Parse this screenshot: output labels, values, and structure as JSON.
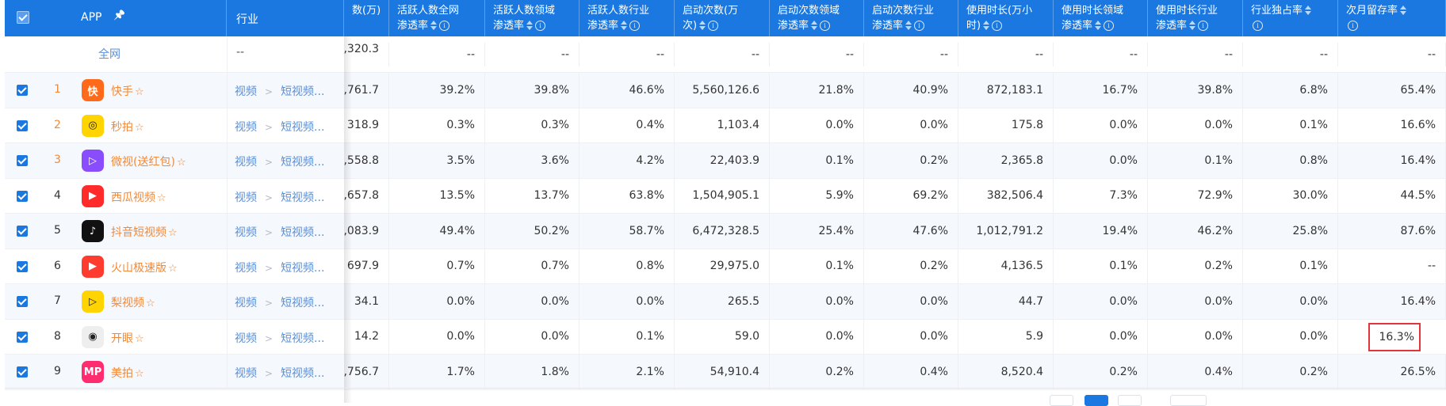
{
  "header": {
    "app_label": "APP",
    "industry_label": "行业",
    "columns": [
      {
        "line1": "数(万)",
        "line2": ""
      },
      {
        "line1": "活跃人数全网",
        "line2": "渗透率"
      },
      {
        "line1": "活跃人数领域",
        "line2": "渗透率"
      },
      {
        "line1": "活跃人数行业",
        "line2": "渗透率"
      },
      {
        "line1": "启动次数(万",
        "line2": "次)"
      },
      {
        "line1": "启动次数领域",
        "line2": "渗透率"
      },
      {
        "line1": "启动次数行业",
        "line2": "渗透率"
      },
      {
        "line1": "使用时长(万小",
        "line2": "时)"
      },
      {
        "line1": "使用时长领域",
        "line2": "渗透率"
      },
      {
        "line1": "使用时长行业",
        "line2": "渗透率"
      },
      {
        "line1": "行业独占率",
        "line2": ""
      },
      {
        "line1": "次月留存率",
        "line2": ""
      }
    ]
  },
  "allnet": {
    "label": "全网",
    "industry": "--",
    "values": [
      ",320.3",
      "--",
      "--",
      "--",
      "--",
      "--",
      "--",
      "--",
      "--",
      "--",
      "--",
      "--"
    ]
  },
  "rows": [
    {
      "rank": "1",
      "name": "快手",
      "icon": "kuaishou-icon",
      "icon_color": "#ff6a1a",
      "glyph": "快",
      "cat1": "视频",
      "cat2": "短视频...",
      "values": [
        ",761.7",
        "39.2%",
        "39.8%",
        "46.6%",
        "5,560,126.6",
        "21.8%",
        "40.9%",
        "872,183.1",
        "16.7%",
        "39.8%",
        "6.8%",
        "65.4%"
      ]
    },
    {
      "rank": "2",
      "name": "秒拍",
      "icon": "miaopai-icon",
      "icon_color": "#ffd400",
      "glyph": "◎",
      "cat1": "视频",
      "cat2": "短视频...",
      "values": [
        "318.9",
        "0.3%",
        "0.3%",
        "0.4%",
        "1,103.4",
        "0.0%",
        "0.0%",
        "175.8",
        "0.0%",
        "0.0%",
        "0.1%",
        "16.6%"
      ]
    },
    {
      "rank": "3",
      "name": "微视(送红包)",
      "icon": "weishi-icon",
      "icon_color": "#8a4dfd",
      "glyph": "▷",
      "cat1": "视频",
      "cat2": "短视频...",
      "values": [
        ",558.8",
        "3.5%",
        "3.6%",
        "4.2%",
        "22,403.9",
        "0.1%",
        "0.2%",
        "2,365.8",
        "0.0%",
        "0.1%",
        "0.8%",
        "16.4%"
      ]
    },
    {
      "rank": "4",
      "name": "西瓜视频",
      "icon": "xigua-icon",
      "icon_color": "#ff2a2a",
      "glyph": "▶",
      "cat1": "视频",
      "cat2": "短视频...",
      "values": [
        ",657.8",
        "13.5%",
        "13.7%",
        "63.8%",
        "1,504,905.1",
        "5.9%",
        "69.2%",
        "382,506.4",
        "7.3%",
        "72.9%",
        "30.0%",
        "44.5%"
      ]
    },
    {
      "rank": "5",
      "name": "抖音短视频",
      "icon": "douyin-icon",
      "icon_color": "#111111",
      "glyph": "♪",
      "cat1": "视频",
      "cat2": "短视频...",
      "values": [
        ",083.9",
        "49.4%",
        "50.2%",
        "58.7%",
        "6,472,328.5",
        "25.4%",
        "47.6%",
        "1,012,791.2",
        "19.4%",
        "46.2%",
        "25.8%",
        "87.6%"
      ]
    },
    {
      "rank": "6",
      "name": "火山极速版",
      "icon": "huoshan-icon",
      "icon_color": "#ff3b30",
      "glyph": "▶",
      "cat1": "视频",
      "cat2": "短视频...",
      "values": [
        "697.9",
        "0.7%",
        "0.7%",
        "0.8%",
        "29,975.0",
        "0.1%",
        "0.2%",
        "4,136.5",
        "0.1%",
        "0.2%",
        "0.1%",
        "--"
      ]
    },
    {
      "rank": "7",
      "name": "梨视频",
      "icon": "lishipin-icon",
      "icon_color": "#ffd400",
      "glyph": "▷",
      "cat1": "视频",
      "cat2": "短视频...",
      "values": [
        "34.1",
        "0.0%",
        "0.0%",
        "0.0%",
        "265.5",
        "0.0%",
        "0.0%",
        "44.7",
        "0.0%",
        "0.0%",
        "0.0%",
        "16.4%"
      ]
    },
    {
      "rank": "8",
      "name": "开眼",
      "icon": "kaiyan-icon",
      "icon_color": "#eeeeee",
      "glyph": "◉",
      "cat1": "视频",
      "cat2": "短视频...",
      "values": [
        "14.2",
        "0.0%",
        "0.0%",
        "0.1%",
        "59.0",
        "0.0%",
        "0.0%",
        "5.9",
        "0.0%",
        "0.0%",
        "0.0%",
        "16.3%"
      ]
    },
    {
      "rank": "9",
      "name": "美拍",
      "icon": "meipai-icon",
      "icon_color": "#ff2d6f",
      "glyph": "MP",
      "cat1": "视频",
      "cat2": "短视频...",
      "values": [
        ",756.7",
        "1.7%",
        "1.8%",
        "2.1%",
        "54,910.4",
        "0.2%",
        "0.4%",
        "8,520.4",
        "0.2%",
        "0.4%",
        "0.2%",
        "26.5%"
      ]
    }
  ]
}
